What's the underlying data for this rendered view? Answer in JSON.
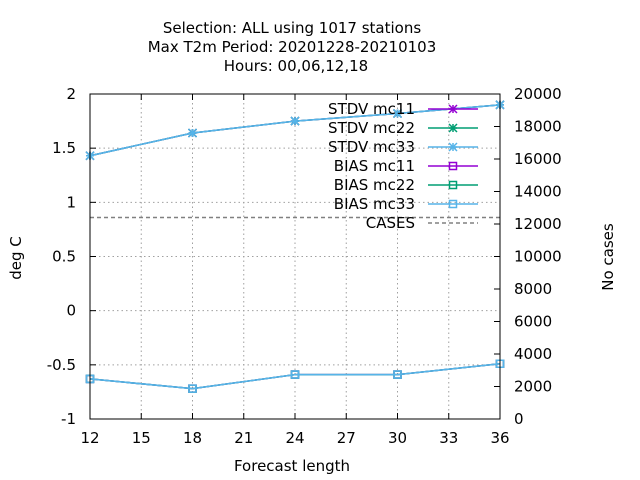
{
  "chart_data": {
    "type": "line",
    "title_lines": [
      "Selection: ALL using  1017 stations",
      "Max T2m   Period: 20201228-20210103",
      "Hours:  00,06,12,18"
    ],
    "xlabel": "Forecast length",
    "ylabel": "deg C",
    "y2label": "No cases",
    "xlim": [
      12,
      36
    ],
    "ylim": [
      -1,
      2
    ],
    "y2lim": [
      0,
      20000
    ],
    "xticks": [
      "12",
      "15",
      "18",
      "21",
      "24",
      "27",
      "30",
      "33",
      "36"
    ],
    "yticks": [
      "-1",
      "-0.5",
      "0",
      "0.5",
      "1",
      "1.5",
      "2"
    ],
    "y2ticks": [
      "0",
      "2000",
      "4000",
      "6000",
      "8000",
      "10000",
      "12000",
      "14000",
      "16000",
      "18000",
      "20000"
    ],
    "grid": true,
    "legend_position": "top-right",
    "x": [
      12,
      18,
      24,
      30,
      36
    ],
    "series": [
      {
        "name": "STDV mc11",
        "color": "#9400d3",
        "marker": "star",
        "axis": "y1",
        "values": [
          1.43,
          1.64,
          1.75,
          1.82,
          1.9
        ]
      },
      {
        "name": "STDV mc22",
        "color": "#009e73",
        "marker": "star",
        "axis": "y1",
        "values": [
          1.43,
          1.64,
          1.75,
          1.82,
          1.9
        ]
      },
      {
        "name": "STDV mc33",
        "color": "#56b4e9",
        "marker": "star",
        "axis": "y1",
        "values": [
          1.43,
          1.64,
          1.75,
          1.82,
          1.9
        ]
      },
      {
        "name": "BIAS mc11",
        "color": "#9400d3",
        "marker": "square",
        "axis": "y1",
        "values": [
          -0.63,
          -0.72,
          -0.59,
          -0.59,
          -0.49
        ]
      },
      {
        "name": "BIAS mc22",
        "color": "#009e73",
        "marker": "square",
        "axis": "y1",
        "values": [
          -0.63,
          -0.72,
          -0.59,
          -0.59,
          -0.49
        ]
      },
      {
        "name": "BIAS mc33",
        "color": "#56b4e9",
        "marker": "square",
        "axis": "y1",
        "values": [
          -0.63,
          -0.72,
          -0.59,
          -0.59,
          -0.49
        ]
      },
      {
        "name": "CASES",
        "color": "#808080",
        "marker": "none",
        "dashed": true,
        "axis": "y2",
        "values": [
          12400,
          12400,
          12400,
          12400,
          12400
        ]
      }
    ]
  }
}
